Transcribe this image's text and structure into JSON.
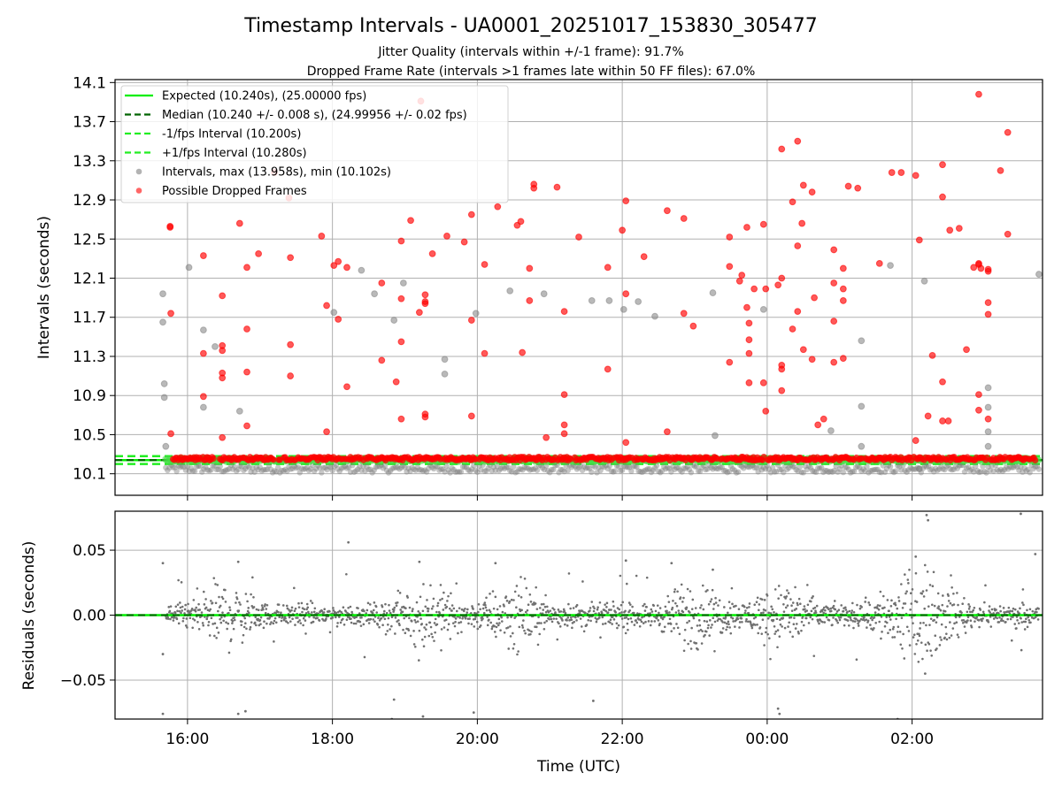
{
  "figure": {
    "title": "Timestamp Intervals - UA0001_20251017_153830_305477",
    "subtitle_1": "Jitter Quality (intervals within +/-1 frame): 91.7%",
    "subtitle_2": "Dropped Frame Rate (intervals >1 frames late within 50 FF files): 67.0%"
  },
  "colors": {
    "expected": "#00ee00",
    "median": "#006400",
    "interval_band": "#22ee22",
    "intervals": "#808080",
    "dropped": "#ff0000",
    "residuals": "#707070",
    "grid": "#b0b0b0"
  },
  "chart_data": [
    {
      "type": "scatter",
      "xlabel": "",
      "ylabel": "Intervals (seconds)",
      "x_unit": "hours (UTC, continuing past midnight)",
      "xlim": [
        15.0,
        27.8
      ],
      "ylim": [
        9.88,
        14.13
      ],
      "yticks": [
        "10.1",
        "10.5",
        "10.9",
        "11.3",
        "11.7",
        "12.1",
        "12.5",
        "12.9",
        "13.3",
        "13.7",
        "14.1"
      ],
      "ytick_values": [
        10.1,
        10.5,
        10.9,
        11.3,
        11.7,
        12.1,
        12.5,
        12.9,
        13.3,
        13.7,
        14.1
      ],
      "grid": true,
      "legend_position": "upper-left",
      "legend": [
        {
          "label": "Expected (10.240s), (25.00000 fps)",
          "style": "solid",
          "color": "#00ee00"
        },
        {
          "label": "Median (10.240 +/- 0.008 s), (24.99956 +/- 0.02 fps)",
          "style": "dashed",
          "color": "#006400"
        },
        {
          "label": "-1/fps Interval (10.200s)",
          "style": "dashed",
          "color": "#22ee22"
        },
        {
          "label": "+1/fps Interval (10.280s)",
          "style": "dashed",
          "color": "#22ee22"
        },
        {
          "label": "Intervals, max (13.958s), min (10.102s)",
          "style": "marker",
          "color": "#808080"
        },
        {
          "label": "Possible Dropped Frames",
          "style": "marker",
          "color": "#ff0000"
        }
      ],
      "reference_lines": {
        "expected": 10.24,
        "median": 10.24,
        "minus_1_fps": 10.2,
        "plus_1_fps": 10.28
      },
      "x_start": 15.7,
      "x_end": 27.75,
      "series": [
        {
          "name": "Intervals, max (13.958s), min (10.102s)",
          "points": [
            [
              15.66,
              11.94
            ],
            [
              15.66,
              11.65
            ],
            [
              15.68,
              11.02
            ],
            [
              15.68,
              10.88
            ],
            [
              15.7,
              10.38
            ],
            [
              16.02,
              12.21
            ],
            [
              16.22,
              11.57
            ],
            [
              16.22,
              10.78
            ],
            [
              16.38,
              11.4
            ],
            [
              16.72,
              10.74
            ],
            [
              18.02,
              11.75
            ],
            [
              18.4,
              12.18
            ],
            [
              18.58,
              11.94
            ],
            [
              18.85,
              11.67
            ],
            [
              18.98,
              12.05
            ],
            [
              19.55,
              11.27
            ],
            [
              19.55,
              11.12
            ],
            [
              19.98,
              11.74
            ],
            [
              20.45,
              11.97
            ],
            [
              20.92,
              11.94
            ],
            [
              21.58,
              11.87
            ],
            [
              21.82,
              11.87
            ],
            [
              22.02,
              11.78
            ],
            [
              22.22,
              11.86
            ],
            [
              22.45,
              11.71
            ],
            [
              23.25,
              11.95
            ],
            [
              23.28,
              10.49
            ],
            [
              23.95,
              11.78
            ],
            [
              24.88,
              10.54
            ],
            [
              25.3,
              11.46
            ],
            [
              25.3,
              10.79
            ],
            [
              25.3,
              10.38
            ],
            [
              25.7,
              12.23
            ],
            [
              26.17,
              12.07
            ],
            [
              26.1,
              10.15
            ],
            [
              27.05,
              10.98
            ],
            [
              27.05,
              10.78
            ],
            [
              27.05,
              10.53
            ],
            [
              27.05,
              10.38
            ],
            [
              27.75,
              12.14
            ]
          ]
        },
        {
          "name": "Possible Dropped Frames",
          "points": [
            [
              15.76,
              12.63
            ],
            [
              15.76,
              12.62
            ],
            [
              15.77,
              11.74
            ],
            [
              15.77,
              10.51
            ],
            [
              16.22,
              12.33
            ],
            [
              16.22,
              11.33
            ],
            [
              16.22,
              10.89
            ],
            [
              16.48,
              11.92
            ],
            [
              16.48,
              11.41
            ],
            [
              16.48,
              11.36
            ],
            [
              16.48,
              11.13
            ],
            [
              16.48,
              11.08
            ],
            [
              16.48,
              10.47
            ],
            [
              16.72,
              12.66
            ],
            [
              16.82,
              12.21
            ],
            [
              16.82,
              11.58
            ],
            [
              16.82,
              11.14
            ],
            [
              16.82,
              10.59
            ],
            [
              16.98,
              12.35
            ],
            [
              17.42,
              12.31
            ],
            [
              17.42,
              11.42
            ],
            [
              17.42,
              11.1
            ],
            [
              17.85,
              12.53
            ],
            [
              17.92,
              11.82
            ],
            [
              17.92,
              10.53
            ],
            [
              18.02,
              12.23
            ],
            [
              18.08,
              12.27
            ],
            [
              18.08,
              11.68
            ],
            [
              18.2,
              12.21
            ],
            [
              18.2,
              10.99
            ],
            [
              18.68,
              12.05
            ],
            [
              18.68,
              11.26
            ],
            [
              18.88,
              11.04
            ],
            [
              18.95,
              12.48
            ],
            [
              18.95,
              11.89
            ],
            [
              18.95,
              11.45
            ],
            [
              18.95,
              10.66
            ],
            [
              19.08,
              12.69
            ],
            [
              19.2,
              11.75
            ],
            [
              19.22,
              13.91
            ],
            [
              19.28,
              11.93
            ],
            [
              19.28,
              11.86
            ],
            [
              19.28,
              11.84
            ],
            [
              19.28,
              10.71
            ],
            [
              19.28,
              10.68
            ],
            [
              19.38,
              12.35
            ],
            [
              19.58,
              12.53
            ],
            [
              19.82,
              12.47
            ],
            [
              19.92,
              12.75
            ],
            [
              19.92,
              11.67
            ],
            [
              19.92,
              10.69
            ],
            [
              20.1,
              12.24
            ],
            [
              20.1,
              11.33
            ],
            [
              20.28,
              12.83
            ],
            [
              20.55,
              12.64
            ],
            [
              20.6,
              12.68
            ],
            [
              20.62,
              11.34
            ],
            [
              20.72,
              12.2
            ],
            [
              20.72,
              11.87
            ],
            [
              20.78,
              13.02
            ],
            [
              20.78,
              13.06
            ],
            [
              20.95,
              10.47
            ],
            [
              21.1,
              13.03
            ],
            [
              21.2,
              11.76
            ],
            [
              21.2,
              10.51
            ],
            [
              21.2,
              10.6
            ],
            [
              21.2,
              10.91
            ],
            [
              21.4,
              12.52
            ],
            [
              21.8,
              12.21
            ],
            [
              21.8,
              11.17
            ],
            [
              22.05,
              12.89
            ],
            [
              22.05,
              11.94
            ],
            [
              22.05,
              10.42
            ],
            [
              22.0,
              12.59
            ],
            [
              22.3,
              12.32
            ],
            [
              22.62,
              12.79
            ],
            [
              22.62,
              10.53
            ],
            [
              22.85,
              11.74
            ],
            [
              22.85,
              12.71
            ],
            [
              22.98,
              11.61
            ],
            [
              23.48,
              12.52
            ],
            [
              23.48,
              12.22
            ],
            [
              23.48,
              11.24
            ],
            [
              23.72,
              12.62
            ],
            [
              23.72,
              11.8
            ],
            [
              23.75,
              11.47
            ],
            [
              23.75,
              11.33
            ],
            [
              23.75,
              11.03
            ],
            [
              23.75,
              11.64
            ],
            [
              23.62,
              12.07
            ],
            [
              23.65,
              12.13
            ],
            [
              23.82,
              11.99
            ],
            [
              23.95,
              12.65
            ],
            [
              23.95,
              11.03
            ],
            [
              23.98,
              10.74
            ],
            [
              23.98,
              11.99
            ],
            [
              24.15,
              12.03
            ],
            [
              24.2,
              13.42
            ],
            [
              24.2,
              12.1
            ],
            [
              24.2,
              11.21
            ],
            [
              24.2,
              11.17
            ],
            [
              24.2,
              10.95
            ],
            [
              24.35,
              12.88
            ],
            [
              24.35,
              11.58
            ],
            [
              24.42,
              13.5
            ],
            [
              24.42,
              11.76
            ],
            [
              24.42,
              12.43
            ],
            [
              24.48,
              12.66
            ],
            [
              24.5,
              11.37
            ],
            [
              24.5,
              13.05
            ],
            [
              24.62,
              12.98
            ],
            [
              24.62,
              11.27
            ],
            [
              24.65,
              11.9
            ],
            [
              24.7,
              10.6
            ],
            [
              24.78,
              10.66
            ],
            [
              24.92,
              12.39
            ],
            [
              24.92,
              12.05
            ],
            [
              24.92,
              11.66
            ],
            [
              24.92,
              11.24
            ],
            [
              25.05,
              12.2
            ],
            [
              25.05,
              11.99
            ],
            [
              25.05,
              11.87
            ],
            [
              25.05,
              11.28
            ],
            [
              25.12,
              13.04
            ],
            [
              25.25,
              13.02
            ],
            [
              25.55,
              12.25
            ],
            [
              25.85,
              13.18
            ],
            [
              26.05,
              13.15
            ],
            [
              26.05,
              10.44
            ],
            [
              26.1,
              12.49
            ],
            [
              26.22,
              10.69
            ],
            [
              26.28,
              11.31
            ],
            [
              26.52,
              12.59
            ],
            [
              26.5,
              10.64
            ],
            [
              26.65,
              12.61
            ],
            [
              26.75,
              11.37
            ],
            [
              26.85,
              12.21
            ],
            [
              26.92,
              13.98
            ],
            [
              26.92,
              12.24
            ],
            [
              26.92,
              12.25
            ],
            [
              26.92,
              10.91
            ],
            [
              26.92,
              10.75
            ],
            [
              26.95,
              12.2
            ],
            [
              27.05,
              12.19
            ],
            [
              27.05,
              12.17
            ],
            [
              27.05,
              11.85
            ],
            [
              27.05,
              11.73
            ],
            [
              27.05,
              10.66
            ],
            [
              27.22,
              13.2
            ],
            [
              27.32,
              13.59
            ],
            [
              27.32,
              12.55
            ],
            [
              26.42,
              12.93
            ],
            [
              26.42,
              13.26
            ],
            [
              26.42,
              11.04
            ],
            [
              26.42,
              10.64
            ],
            [
              25.72,
              13.18
            ],
            [
              17.2,
              13.18
            ],
            [
              17.4,
              12.92
            ]
          ]
        }
      ]
    },
    {
      "type": "scatter",
      "xlabel": "Time (UTC)",
      "ylabel": "Residuals (seconds)",
      "xlim": [
        15.0,
        27.8
      ],
      "ylim": [
        -0.08,
        0.08
      ],
      "yticks": [
        "0.05",
        "0.00",
        "−0.05"
      ],
      "ytick_values": [
        0.05,
        0.0,
        -0.05
      ],
      "xticks": [
        "16:00",
        "18:00",
        "20:00",
        "22:00",
        "00:00",
        "02:00"
      ],
      "xtick_values": [
        16,
        18,
        20,
        22,
        24,
        26
      ],
      "grid": true,
      "reference_lines": {
        "zero": 0.0
      },
      "series": [
        {
          "name": "",
          "outliers": [
            [
              15.66,
              0.04
            ],
            [
              15.66,
              -0.03
            ],
            [
              15.66,
              -0.076
            ],
            [
              16.7,
              0.041
            ],
            [
              16.8,
              -0.074
            ],
            [
              16.7,
              -0.076
            ],
            [
              18.22,
              0.056
            ],
            [
              18.82,
              -0.08
            ],
            [
              19.25,
              -0.078
            ],
            [
              19.2,
              0.041
            ],
            [
              19.95,
              -0.075
            ],
            [
              20.25,
              0.04
            ],
            [
              22.05,
              0.042
            ],
            [
              22.68,
              0.04
            ],
            [
              24.15,
              -0.072
            ],
            [
              24.17,
              -0.076
            ],
            [
              25.8,
              -0.08
            ],
            [
              26.18,
              -0.045
            ],
            [
              26.2,
              0.077
            ],
            [
              26.22,
              0.073
            ],
            [
              27.5,
              0.078
            ],
            [
              27.7,
              0.047
            ],
            [
              26.05,
              0.045
            ],
            [
              23.25,
              0.035
            ],
            [
              18.85,
              -0.065
            ],
            [
              21.6,
              -0.066
            ]
          ]
        }
      ]
    }
  ]
}
